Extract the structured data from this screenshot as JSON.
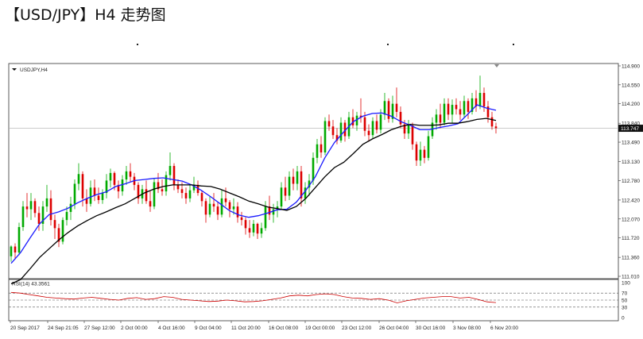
{
  "title": "【USD/JPY】H4 走势图",
  "chart_data": {
    "type": "candlestick",
    "symbol_label": "USDJPY,H4",
    "current_price_label": "113.747",
    "price_axis": {
      "ylim": [
        111.01,
        114.9
      ],
      "ticks": [
        "114.900",
        "114.550",
        "114.200",
        "113.840",
        "113.490",
        "113.130",
        "112.780",
        "112.420",
        "112.070",
        "111.720",
        "111.360",
        "111.010"
      ]
    },
    "time_axis": {
      "ticks": [
        "20 Sep 2017",
        "24 Sep 21:05",
        "27 Sep 12:00",
        "2 Oct 00:00",
        "4 Oct 16:00",
        "9 Oct 04:00",
        "11 Oct 20:00",
        "16 Oct 08:00",
        "19 Oct 00:00",
        "23 Oct 12:00",
        "26 Oct 04:00",
        "30 Oct 16:00",
        "3 Nov 08:00",
        "6 Nov 20:00"
      ]
    },
    "moving_averages": [
      {
        "color": "#1a1aff",
        "values": [
          111.25,
          111.45,
          111.72,
          111.98,
          112.15,
          112.2,
          112.27,
          112.37,
          112.45,
          112.52,
          112.57,
          112.67,
          112.72,
          112.78,
          112.8,
          112.82,
          112.83,
          112.8,
          112.77,
          112.7,
          112.6,
          112.48,
          112.35,
          112.22,
          112.14,
          112.1,
          112.13,
          112.18,
          112.24,
          112.25,
          112.38,
          112.6,
          112.85,
          113.2,
          113.48,
          113.68,
          113.87,
          113.97,
          114.02,
          114.03,
          113.97,
          113.87,
          113.8,
          113.72,
          113.72,
          113.76,
          113.79,
          113.83,
          114.0,
          114.18,
          114.12,
          114.08
        ]
      },
      {
        "color": "#000000",
        "values": [
          110.87,
          110.95,
          111.15,
          111.36,
          111.52,
          111.68,
          111.82,
          111.94,
          112.04,
          112.13,
          112.2,
          112.28,
          112.35,
          112.45,
          112.55,
          112.62,
          112.67,
          112.7,
          112.7,
          112.7,
          112.68,
          112.67,
          112.62,
          112.55,
          112.48,
          112.4,
          112.35,
          112.29,
          112.26,
          112.23,
          112.3,
          112.45,
          112.65,
          112.85,
          113.02,
          113.12,
          113.28,
          113.45,
          113.55,
          113.63,
          113.72,
          113.78,
          113.82,
          113.8,
          113.8,
          113.81,
          113.84,
          113.84,
          113.87,
          113.91,
          113.93,
          113.89
        ]
      }
    ],
    "indicator": {
      "label": "RSI(14) 43.3561",
      "ylim": [
        0,
        100
      ],
      "ticks": [
        "100",
        "70",
        "50",
        "30",
        "0"
      ],
      "levels": [
        70,
        50,
        30
      ],
      "color": "#cc0000",
      "values": [
        72,
        70,
        66,
        62,
        58,
        56,
        54,
        53,
        56,
        58,
        55,
        52,
        50,
        55,
        57,
        52,
        54,
        60,
        58,
        52,
        50,
        48,
        46,
        47,
        50,
        48,
        45,
        46,
        48,
        52,
        56,
        62,
        64,
        62,
        66,
        68,
        66,
        60,
        56,
        55,
        52,
        54,
        50,
        42,
        48,
        52,
        56,
        58,
        60,
        60,
        56,
        58,
        52,
        45,
        43
      ]
    },
    "candles": [
      [
        111.38,
        111.58,
        111.28,
        111.56
      ],
      [
        111.56,
        111.62,
        111.32,
        111.45
      ],
      [
        111.45,
        112.0,
        111.4,
        111.92
      ],
      [
        111.92,
        112.4,
        111.85,
        112.3
      ],
      [
        112.3,
        112.55,
        112.1,
        112.25
      ],
      [
        112.25,
        112.55,
        112.05,
        112.4
      ],
      [
        112.4,
        112.45,
        112.1,
        112.18
      ],
      [
        112.18,
        112.3,
        111.85,
        111.98
      ],
      [
        111.98,
        112.4,
        111.85,
        112.3
      ],
      [
        112.3,
        112.7,
        112.2,
        112.45
      ],
      [
        112.45,
        112.6,
        111.95,
        112.05
      ],
      [
        112.05,
        112.15,
        111.7,
        111.9
      ],
      [
        111.9,
        111.98,
        111.55,
        111.65
      ],
      [
        111.65,
        112.1,
        111.6,
        112.05
      ],
      [
        112.05,
        112.3,
        111.95,
        112.2
      ],
      [
        112.2,
        112.48,
        112.05,
        112.35
      ],
      [
        112.35,
        112.8,
        112.25,
        112.72
      ],
      [
        112.72,
        113.1,
        112.6,
        112.9
      ],
      [
        112.9,
        112.95,
        112.3,
        112.45
      ],
      [
        112.45,
        112.62,
        112.2,
        112.35
      ],
      [
        112.35,
        112.78,
        112.3,
        112.65
      ],
      [
        112.65,
        112.8,
        112.4,
        112.5
      ],
      [
        112.5,
        112.65,
        112.35,
        112.42
      ],
      [
        112.42,
        112.62,
        112.35,
        112.55
      ],
      [
        112.55,
        112.9,
        112.45,
        112.78
      ],
      [
        112.78,
        113.0,
        112.65,
        112.92
      ],
      [
        112.92,
        112.95,
        112.6,
        112.7
      ],
      [
        112.7,
        112.78,
        112.45,
        112.58
      ],
      [
        112.58,
        112.88,
        112.5,
        112.8
      ],
      [
        112.8,
        113.05,
        112.7,
        112.95
      ],
      [
        112.95,
        113.1,
        112.75,
        112.85
      ],
      [
        112.85,
        112.92,
        112.6,
        112.7
      ],
      [
        112.7,
        112.75,
        112.35,
        112.45
      ],
      [
        112.45,
        112.7,
        112.35,
        112.62
      ],
      [
        112.62,
        112.78,
        112.35,
        112.4
      ],
      [
        112.4,
        112.58,
        112.2,
        112.3
      ],
      [
        112.3,
        112.82,
        112.25,
        112.75
      ],
      [
        112.75,
        112.92,
        112.55,
        112.62
      ],
      [
        112.62,
        112.8,
        112.5,
        112.58
      ],
      [
        112.58,
        112.95,
        112.5,
        112.88
      ],
      [
        112.88,
        113.3,
        112.78,
        113.05
      ],
      [
        113.05,
        113.1,
        112.6,
        112.7
      ],
      [
        112.7,
        112.8,
        112.55,
        112.62
      ],
      [
        112.62,
        112.75,
        112.45,
        112.55
      ],
      [
        112.55,
        112.65,
        112.35,
        112.45
      ],
      [
        112.45,
        112.72,
        112.38,
        112.6
      ],
      [
        112.6,
        112.85,
        112.55,
        112.7
      ],
      [
        112.7,
        112.78,
        112.5,
        112.55
      ],
      [
        112.55,
        112.6,
        112.3,
        112.4
      ],
      [
        112.4,
        112.45,
        112.0,
        112.15
      ],
      [
        112.15,
        112.5,
        112.1,
        112.35
      ],
      [
        112.35,
        112.55,
        112.2,
        112.3
      ],
      [
        112.3,
        112.38,
        112.05,
        112.15
      ],
      [
        112.15,
        112.6,
        112.1,
        112.45
      ],
      [
        112.45,
        112.65,
        112.3,
        112.38
      ],
      [
        112.38,
        112.42,
        112.1,
        112.25
      ],
      [
        112.25,
        112.45,
        112.15,
        112.3
      ],
      [
        112.3,
        112.38,
        112.0,
        112.1
      ],
      [
        112.1,
        112.2,
        111.95,
        112.05
      ],
      [
        112.05,
        112.1,
        111.78,
        111.9
      ],
      [
        111.9,
        112.05,
        111.72,
        111.82
      ],
      [
        111.82,
        112.05,
        111.75,
        111.98
      ],
      [
        111.98,
        112.0,
        111.7,
        111.8
      ],
      [
        111.8,
        112.0,
        111.72,
        111.9
      ],
      [
        111.9,
        112.4,
        111.85,
        112.3
      ],
      [
        112.3,
        112.5,
        112.05,
        112.15
      ],
      [
        112.15,
        112.35,
        112.0,
        112.25
      ],
      [
        112.25,
        112.4,
        112.1,
        112.3
      ],
      [
        112.3,
        112.75,
        112.25,
        112.65
      ],
      [
        112.65,
        112.85,
        112.4,
        112.5
      ],
      [
        112.5,
        112.95,
        112.42,
        112.85
      ],
      [
        112.85,
        113.0,
        112.6,
        112.72
      ],
      [
        112.72,
        113.05,
        112.6,
        112.95
      ],
      [
        112.95,
        113.05,
        112.3,
        112.45
      ],
      [
        112.45,
        112.75,
        112.35,
        112.65
      ],
      [
        112.65,
        112.9,
        112.5,
        112.78
      ],
      [
        112.78,
        113.3,
        112.7,
        113.2
      ],
      [
        113.2,
        113.55,
        113.1,
        113.45
      ],
      [
        113.45,
        113.6,
        113.2,
        113.3
      ],
      [
        113.3,
        113.95,
        113.25,
        113.88
      ],
      [
        113.88,
        114.0,
        113.7,
        113.78
      ],
      [
        113.78,
        113.9,
        113.55,
        113.62
      ],
      [
        113.62,
        113.75,
        113.45,
        113.52
      ],
      [
        113.52,
        113.95,
        113.48,
        113.85
      ],
      [
        113.85,
        113.9,
        113.5,
        113.6
      ],
      [
        113.6,
        114.05,
        113.55,
        113.95
      ],
      [
        113.95,
        114.1,
        113.75,
        113.8
      ],
      [
        113.8,
        114.05,
        113.7,
        113.98
      ],
      [
        113.98,
        114.3,
        113.85,
        113.95
      ],
      [
        113.95,
        114.05,
        113.6,
        113.7
      ],
      [
        113.7,
        113.82,
        113.5,
        113.62
      ],
      [
        113.62,
        113.95,
        113.55,
        113.88
      ],
      [
        113.88,
        114.0,
        113.65,
        113.72
      ],
      [
        113.72,
        114.1,
        113.65,
        114.0
      ],
      [
        114.0,
        114.4,
        113.9,
        114.25
      ],
      [
        114.25,
        114.3,
        113.85,
        113.92
      ],
      [
        113.92,
        114.35,
        113.85,
        114.2
      ],
      [
        114.2,
        114.5,
        113.95,
        114.05
      ],
      [
        114.05,
        114.15,
        113.75,
        113.82
      ],
      [
        113.82,
        113.9,
        113.55,
        113.65
      ],
      [
        113.65,
        113.9,
        113.55,
        113.8
      ],
      [
        113.8,
        113.85,
        113.35,
        113.45
      ],
      [
        113.45,
        113.5,
        113.05,
        113.15
      ],
      [
        113.15,
        113.5,
        113.05,
        113.35
      ],
      [
        113.35,
        113.42,
        113.1,
        113.2
      ],
      [
        113.2,
        113.7,
        113.15,
        113.6
      ],
      [
        113.6,
        113.95,
        113.55,
        113.85
      ],
      [
        113.85,
        114.1,
        113.72,
        114.0
      ],
      [
        114.0,
        114.2,
        113.75,
        113.85
      ],
      [
        113.85,
        114.3,
        113.8,
        114.2
      ],
      [
        114.2,
        114.3,
        113.9,
        114.0
      ],
      [
        114.0,
        114.28,
        113.85,
        114.18
      ],
      [
        114.18,
        114.3,
        114.0,
        114.1
      ],
      [
        114.1,
        114.25,
        113.9,
        114.0
      ],
      [
        114.0,
        114.35,
        113.95,
        114.25
      ],
      [
        114.25,
        114.3,
        113.92,
        114.05
      ],
      [
        114.05,
        114.4,
        114.0,
        114.3
      ],
      [
        114.3,
        114.45,
        114.05,
        114.15
      ],
      [
        114.15,
        114.72,
        114.1,
        114.4
      ],
      [
        114.4,
        114.5,
        114.05,
        114.15
      ],
      [
        114.15,
        114.25,
        113.85,
        113.95
      ],
      [
        113.95,
        114.05,
        113.72,
        113.78
      ],
      [
        113.78,
        113.85,
        113.65,
        113.75
      ]
    ]
  }
}
